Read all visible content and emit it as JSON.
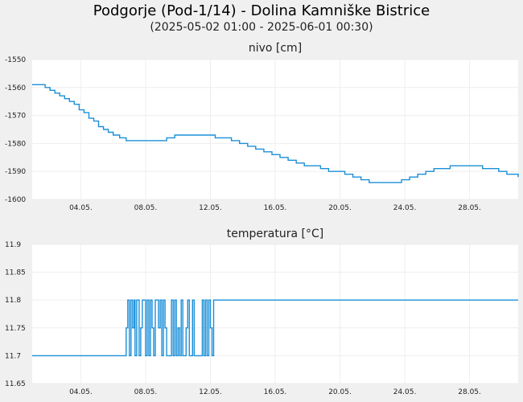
{
  "header": {
    "title": "Podgorje (Pod-1/14) - Dolina Kamniške Bistrice",
    "subtitle": "(2025-05-02 01:00 - 2025-06-01 00:30)"
  },
  "colors": {
    "line": "#1b8fd8",
    "plot_bg": "#ffffff",
    "grid": "#eeeeee",
    "page_bg": "#f0f0f0"
  },
  "chart_data": [
    {
      "type": "line",
      "title": "nivo [cm]",
      "xlabel": "",
      "ylabel": "nivo [cm]",
      "x_range_days": [
        1.0,
        31.0
      ],
      "xticks": [
        {
          "day": 4,
          "label": "04.05."
        },
        {
          "day": 8,
          "label": "08.05."
        },
        {
          "day": 12,
          "label": "12.05."
        },
        {
          "day": 16,
          "label": "16.05."
        },
        {
          "day": 20,
          "label": "20.05."
        },
        {
          "day": 24,
          "label": "24.05."
        },
        {
          "day": 28,
          "label": "28.05."
        }
      ],
      "ylim": [
        -1600,
        -1550
      ],
      "yticks": [
        {
          "value": -1550,
          "label": "-1550"
        },
        {
          "value": -1560,
          "label": "-1560"
        },
        {
          "value": -1570,
          "label": "-1570"
        },
        {
          "value": -1580,
          "label": "-1580"
        },
        {
          "value": -1590,
          "label": "-1590"
        },
        {
          "value": -1600,
          "label": "-1600"
        }
      ],
      "step": true,
      "series": [
        {
          "name": "nivo",
          "x": [
            1.0,
            1.5,
            1.8,
            2.1,
            2.4,
            2.7,
            3.0,
            3.3,
            3.6,
            3.9,
            4.2,
            4.5,
            4.8,
            5.1,
            5.4,
            5.7,
            6.0,
            6.4,
            6.8,
            7.3,
            7.8,
            8.3,
            8.8,
            9.3,
            9.8,
            10.3,
            10.8,
            11.3,
            11.8,
            12.3,
            12.8,
            13.3,
            13.8,
            14.3,
            14.8,
            15.3,
            15.8,
            16.3,
            16.8,
            17.3,
            17.8,
            18.3,
            18.8,
            19.3,
            19.8,
            20.3,
            20.8,
            21.3,
            21.8,
            22.3,
            22.8,
            23.3,
            23.8,
            24.3,
            24.8,
            25.3,
            25.8,
            26.3,
            26.8,
            27.3,
            27.8,
            28.3,
            28.8,
            29.3,
            29.8,
            30.3,
            30.8,
            31.0
          ],
          "values": [
            -1559,
            -1559,
            -1560,
            -1561,
            -1562,
            -1563,
            -1564,
            -1565,
            -1566,
            -1568,
            -1569,
            -1571,
            -1572,
            -1574,
            -1575,
            -1576,
            -1577,
            -1578,
            -1579,
            -1579,
            -1579,
            -1579,
            -1579,
            -1578,
            -1577,
            -1577,
            -1577,
            -1577,
            -1577,
            -1578,
            -1578,
            -1579,
            -1580,
            -1581,
            -1582,
            -1583,
            -1584,
            -1585,
            -1586,
            -1587,
            -1588,
            -1588,
            -1589,
            -1590,
            -1590,
            -1591,
            -1592,
            -1593,
            -1594,
            -1594,
            -1594,
            -1594,
            -1593,
            -1592,
            -1591,
            -1590,
            -1589,
            -1589,
            -1588,
            -1588,
            -1588,
            -1588,
            -1589,
            -1589,
            -1590,
            -1591,
            -1591,
            -1592
          ]
        }
      ]
    },
    {
      "type": "line",
      "title": "temperatura [°C]",
      "xlabel": "",
      "ylabel": "temperatura [°C]",
      "x_range_days": [
        1.0,
        31.0
      ],
      "xticks": [
        {
          "day": 4,
          "label": "04.05."
        },
        {
          "day": 8,
          "label": "08.05."
        },
        {
          "day": 12,
          "label": "12.05."
        },
        {
          "day": 16,
          "label": "16.05."
        },
        {
          "day": 20,
          "label": "20.05."
        },
        {
          "day": 24,
          "label": "24.05."
        },
        {
          "day": 28,
          "label": "28.05."
        }
      ],
      "ylim": [
        11.65,
        11.9
      ],
      "yticks": [
        {
          "value": 11.65,
          "label": "11.65"
        },
        {
          "value": 11.7,
          "label": "11.7"
        },
        {
          "value": 11.75,
          "label": "11.75"
        },
        {
          "value": 11.8,
          "label": "11.8"
        },
        {
          "value": 11.85,
          "label": "11.85"
        },
        {
          "value": 11.9,
          "label": "11.9"
        }
      ],
      "step": true,
      "series": [
        {
          "name": "temperatura",
          "x": [
            1.0,
            6.8,
            6.9,
            7.0,
            7.1,
            7.2,
            7.3,
            7.35,
            7.45,
            7.5,
            7.6,
            7.7,
            7.8,
            7.9,
            8.0,
            8.1,
            8.2,
            8.3,
            8.4,
            8.5,
            8.6,
            8.7,
            8.8,
            8.9,
            9.0,
            9.1,
            9.2,
            9.3,
            9.5,
            9.6,
            9.7,
            9.8,
            9.9,
            10.0,
            10.1,
            10.2,
            10.3,
            10.4,
            10.5,
            10.6,
            10.7,
            10.8,
            10.9,
            11.0,
            11.1,
            11.3,
            11.5,
            11.6,
            11.7,
            11.8,
            11.9,
            12.0,
            12.1,
            12.2,
            12.3,
            31.0
          ],
          "values": [
            11.7,
            11.75,
            11.8,
            11.7,
            11.8,
            11.75,
            11.8,
            11.7,
            11.8,
            11.8,
            11.7,
            11.75,
            11.8,
            11.8,
            11.7,
            11.8,
            11.7,
            11.8,
            11.75,
            11.7,
            11.8,
            11.8,
            11.75,
            11.8,
            11.7,
            11.8,
            11.75,
            11.7,
            11.7,
            11.8,
            11.7,
            11.8,
            11.7,
            11.75,
            11.7,
            11.8,
            11.7,
            11.7,
            11.75,
            11.8,
            11.7,
            11.7,
            11.8,
            11.7,
            11.7,
            11.7,
            11.8,
            11.7,
            11.8,
            11.7,
            11.8,
            11.75,
            11.7,
            11.8,
            11.8,
            11.8
          ]
        }
      ]
    }
  ]
}
